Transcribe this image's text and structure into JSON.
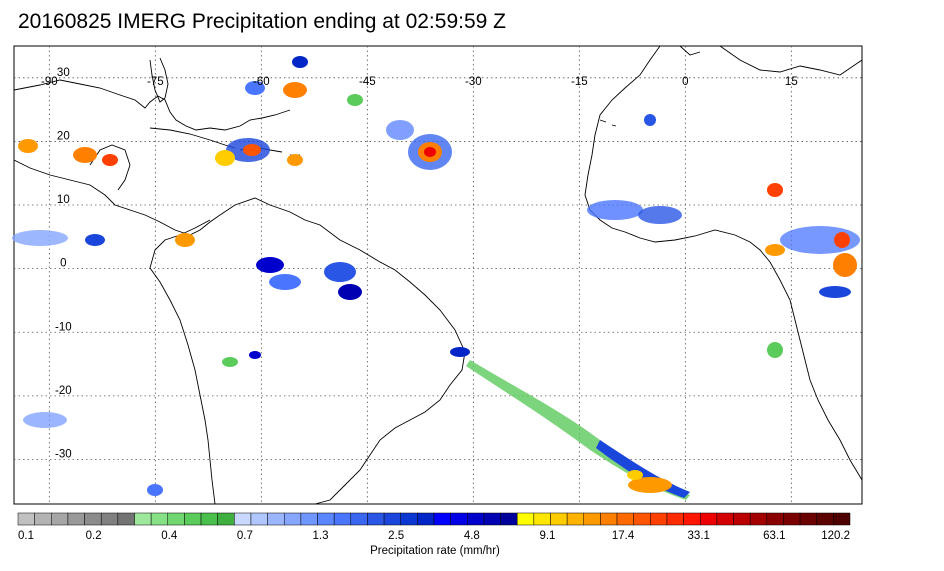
{
  "title": "20160825 IMERG Precipitation ending at 02:59:59 Z",
  "map": {
    "lon_labels": [
      "-90",
      "-75",
      "-60",
      "-45",
      "-30",
      "-15",
      "0",
      "15"
    ],
    "lat_labels": [
      "30",
      "20",
      "10",
      "0",
      "-10",
      "-20",
      "-30"
    ],
    "lon_range": [
      -95,
      25
    ],
    "lat_range": [
      -37,
      35
    ]
  },
  "colorbar": {
    "labels": [
      "0.1",
      "0.2",
      "0.4",
      "0.7",
      "1.3",
      "2.5",
      "4.8",
      "9.1",
      "17.4",
      "33.1",
      "63.1",
      "120.2"
    ],
    "caption": "Precipitation rate (mm/hr)",
    "colors": [
      "#c0c0c0",
      "#b3b3b3",
      "#a6a6a6",
      "#999999",
      "#8c8c8c",
      "#808080",
      "#737373",
      "#9ee89e",
      "#86e086",
      "#70d670",
      "#5bcb5b",
      "#4bbf4b",
      "#3fb03f",
      "#c8d8ff",
      "#b0c6ff",
      "#9bb6ff",
      "#86a6ff",
      "#7096ff",
      "#5a86ff",
      "#4a76ff",
      "#3a66f0",
      "#2a56e6",
      "#1a46dc",
      "#0a36d2",
      "#0026c8",
      "#0000ff",
      "#0000e6",
      "#0000cc",
      "#0000b3",
      "#00009a",
      "#ffff00",
      "#ffe600",
      "#ffcc00",
      "#ffb300",
      "#ff9900",
      "#ff8000",
      "#ff6a00",
      "#ff5500",
      "#ff4000",
      "#ff2b00",
      "#ff1500",
      "#ee0000",
      "#d40000",
      "#bb0000",
      "#a30000",
      "#8a0000",
      "#7a0000",
      "#6a0000",
      "#5c0000",
      "#4e0000"
    ]
  }
}
